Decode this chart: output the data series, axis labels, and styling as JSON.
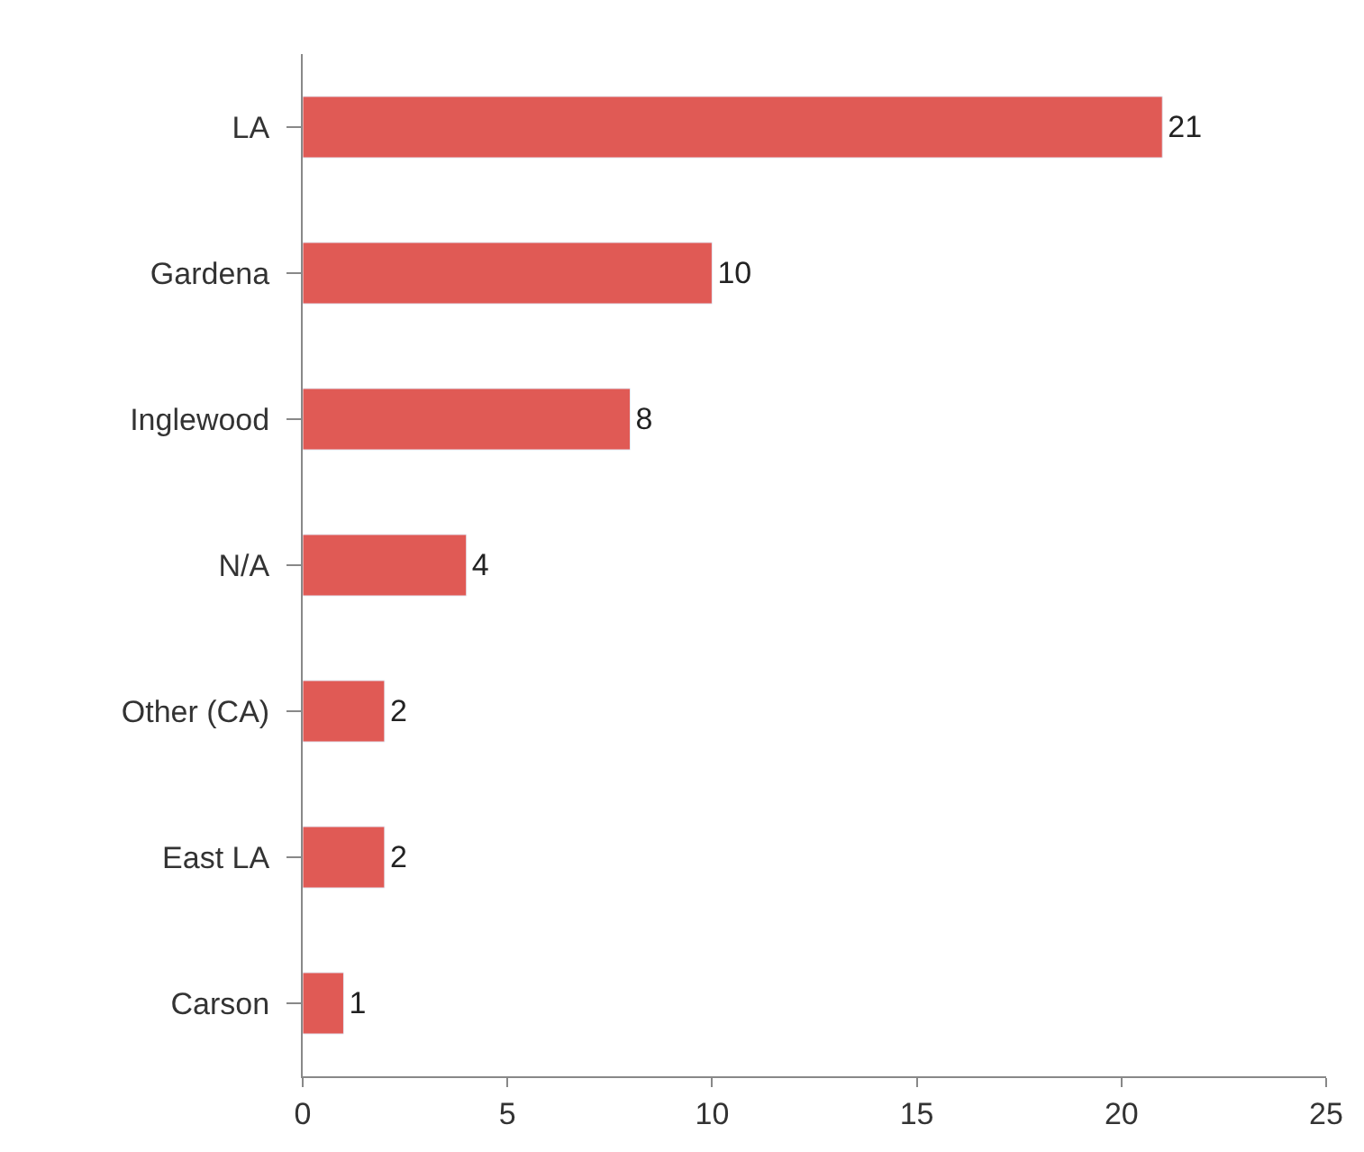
{
  "chart_data": {
    "type": "bar",
    "orientation": "horizontal",
    "categories": [
      "LA",
      "Gardena",
      "Inglewood",
      "N/A",
      "Other (CA)",
      "East LA",
      "Carson"
    ],
    "values": [
      21,
      10,
      8,
      4,
      2,
      2,
      1
    ],
    "color": "#e05a55",
    "xlim": [
      0,
      25
    ],
    "xticks": [
      0,
      5,
      10,
      15,
      20,
      25
    ],
    "data_labels": true,
    "legend": false
  }
}
